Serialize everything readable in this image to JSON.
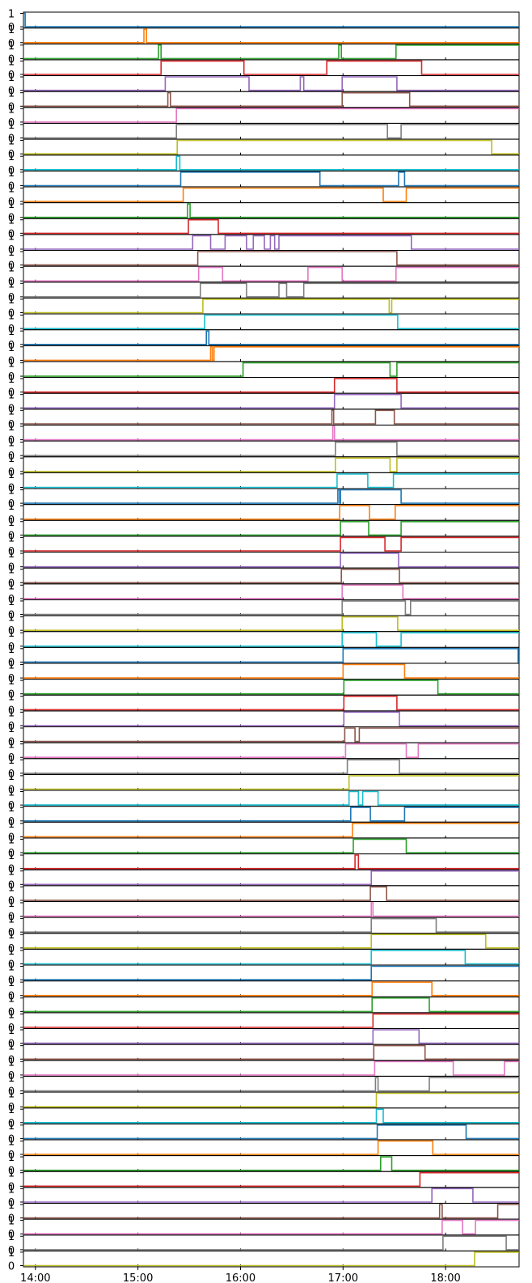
{
  "chart_data": {
    "type": "line",
    "subtype": "stacked-step-strips",
    "xlabel": "",
    "ylabel": "",
    "x_tick_labels": [
      "14:00",
      "15:00",
      "16:00",
      "17:00",
      "18:00"
    ],
    "x_ticks_minutes": [
      840,
      900,
      960,
      1020,
      1080
    ],
    "xlim_minutes": [
      833,
      1123
    ],
    "ylim": [
      0,
      1
    ],
    "y_tick_labels": [
      "0",
      "1"
    ],
    "grid": false,
    "colors": [
      "#1f77b4",
      "#ff7f0e",
      "#2ca02c",
      "#d62728",
      "#9467bd",
      "#8c564b",
      "#e377c2",
      "#7f7f7f",
      "#bcbd22",
      "#17becf"
    ],
    "series": [
      {
        "initial": 1,
        "edges": [
          834
        ]
      },
      {
        "initial": 0,
        "edges": [
          903.5,
          905
        ]
      },
      {
        "initial": 0,
        "edges": [
          912,
          913.5,
          1017.5,
          1019,
          1051
        ]
      },
      {
        "initial": 0,
        "edges": [
          913.5,
          962,
          1010.5,
          1066
        ]
      },
      {
        "initial": 0,
        "edges": [
          916,
          965,
          995,
          997,
          1019.5,
          1051.5
        ]
      },
      {
        "initial": 0,
        "edges": [
          917.5,
          919,
          1019.5,
          1059
        ]
      },
      {
        "initial": 0,
        "edges": [
          922.5
        ]
      },
      {
        "initial": 0,
        "edges": [
          922.5,
          1046,
          1054
        ]
      },
      {
        "initial": 0,
        "edges": [
          923,
          1107
        ]
      },
      {
        "initial": 0,
        "edges": [
          922.5,
          924.5
        ]
      },
      {
        "initial": 0,
        "edges": [
          925,
          1006.5,
          1052.5,
          1056
        ]
      },
      {
        "initial": 0,
        "edges": [
          926.5,
          1043.5,
          1057
        ]
      },
      {
        "initial": 0,
        "edges": [
          929,
          930.5
        ]
      },
      {
        "initial": 0,
        "edges": [
          929.5,
          947
        ]
      },
      {
        "initial": 0,
        "edges": [
          932,
          942.5,
          951,
          963.5,
          967.5,
          974,
          977.5,
          980,
          982.5,
          1060
        ]
      },
      {
        "initial": 0,
        "edges": [
          935,
          1051.5
        ]
      },
      {
        "initial": 0,
        "edges": [
          935.5,
          949.5,
          999.5,
          1019.5,
          1051
        ]
      },
      {
        "initial": 0,
        "edges": [
          936.5,
          963.5,
          982.5,
          987,
          997
        ]
      },
      {
        "initial": 0,
        "edges": [
          938,
          1047,
          1048.5
        ]
      },
      {
        "initial": 0,
        "edges": [
          939,
          1052
        ]
      },
      {
        "initial": 0,
        "edges": [
          940,
          941.5
        ]
      },
      {
        "initial": 0,
        "edges": [
          942.5,
          943.5,
          944.5
        ]
      },
      {
        "initial": 0,
        "edges": [
          961.5,
          1047.5,
          1051.5
        ]
      },
      {
        "initial": 0,
        "edges": [
          1015,
          1051.5
        ]
      },
      {
        "initial": 0,
        "edges": [
          1015,
          1054
        ]
      },
      {
        "initial": 0,
        "edges": [
          1013.5,
          1014.5,
          1039,
          1050
        ]
      },
      {
        "initial": 0,
        "edges": [
          1014,
          1015
        ]
      },
      {
        "initial": 0,
        "edges": [
          1015.5,
          1051.5
        ]
      },
      {
        "initial": 0,
        "edges": [
          1015.5,
          1047.5,
          1051.5
        ]
      },
      {
        "initial": 0,
        "edges": [
          1016.5,
          1034.5,
          1049.5
        ]
      },
      {
        "initial": 0,
        "edges": [
          1017,
          1018,
          1018.5,
          1054
        ]
      },
      {
        "initial": 0,
        "edges": [
          1018,
          1035.5,
          1050.5
        ]
      },
      {
        "initial": 0,
        "edges": [
          1018.5,
          1035,
          1054
        ]
      },
      {
        "initial": 0,
        "edges": [
          1018.5,
          1044.5,
          1054
        ]
      },
      {
        "initial": 0,
        "edges": [
          1018.5,
          1052.5
        ]
      },
      {
        "initial": 0,
        "edges": [
          1019,
          1053
        ]
      },
      {
        "initial": 0,
        "edges": [
          1019.5,
          1055
        ]
      },
      {
        "initial": 0,
        "edges": [
          1019.5,
          1056.5,
          1059.5
        ]
      },
      {
        "initial": 0,
        "edges": [
          1019.5,
          1052
        ]
      },
      {
        "initial": 0,
        "edges": [
          1019.5,
          1039.5,
          1054
        ]
      },
      {
        "initial": 0,
        "edges": [
          1020,
          1122.5
        ]
      },
      {
        "initial": 0,
        "edges": [
          1020,
          1056
        ]
      },
      {
        "initial": 0,
        "edges": [
          1020.5,
          1075.5
        ]
      },
      {
        "initial": 0,
        "edges": [
          1020.5,
          1051.5
        ]
      },
      {
        "initial": 0,
        "edges": [
          1020.5,
          1053
        ]
      },
      {
        "initial": 0,
        "edges": [
          1021,
          1027,
          1029.5
        ]
      },
      {
        "initial": 0,
        "edges": [
          1021.5,
          1057,
          1064
        ]
      },
      {
        "initial": 0,
        "edges": [
          1022.5,
          1053
        ]
      },
      {
        "initial": 0,
        "edges": [
          1023.5
        ]
      },
      {
        "initial": 0,
        "edges": [
          1023.5,
          1029,
          1031.5,
          1040.5
        ]
      },
      {
        "initial": 0,
        "edges": [
          1024.5,
          1036,
          1056
        ]
      },
      {
        "initial": 0,
        "edges": [
          1025.5
        ]
      },
      {
        "initial": 0,
        "edges": [
          1026,
          1057
        ]
      },
      {
        "initial": 0,
        "edges": [
          1027,
          1029
        ]
      },
      {
        "initial": 0,
        "edges": [
          1036.5
        ]
      },
      {
        "initial": 0,
        "edges": [
          1036,
          1045.5
        ]
      },
      {
        "initial": 0,
        "edges": [
          1036.5,
          1037.5
        ]
      },
      {
        "initial": 0,
        "edges": [
          1036.5,
          1074.5
        ]
      },
      {
        "initial": 0,
        "edges": [
          1036.5,
          1103.5
        ]
      },
      {
        "initial": 0,
        "edges": [
          1036.5,
          1091.5
        ]
      },
      {
        "initial": 0,
        "edges": [
          1036.5
        ]
      },
      {
        "initial": 0,
        "edges": [
          1037,
          1072
        ]
      },
      {
        "initial": 0,
        "edges": [
          1037,
          1070.5
        ]
      },
      {
        "initial": 0,
        "edges": [
          1037.5
        ]
      },
      {
        "initial": 0,
        "edges": [
          1037.5,
          1064.5
        ]
      },
      {
        "initial": 0,
        "edges": [
          1038,
          1068
        ]
      },
      {
        "initial": 0,
        "edges": [
          1038.5,
          1084.5,
          1114.5
        ]
      },
      {
        "initial": 0,
        "edges": [
          1039,
          1040.5,
          1070.5
        ]
      },
      {
        "initial": 0,
        "edges": [
          1039.5
        ]
      },
      {
        "initial": 0,
        "edges": [
          1039.5,
          1043.5
        ]
      },
      {
        "initial": 0,
        "edges": [
          1040,
          1092
        ]
      },
      {
        "initial": 0,
        "edges": [
          1040.5,
          1072.5
        ]
      },
      {
        "initial": 0,
        "edges": [
          1042,
          1048.5
        ]
      },
      {
        "initial": 0,
        "edges": [
          1065
        ]
      },
      {
        "initial": 0,
        "edges": [
          1072,
          1096
        ]
      },
      {
        "initial": 0,
        "edges": [
          1076.5,
          1078,
          1110.5
        ]
      },
      {
        "initial": 0,
        "edges": [
          1078,
          1090,
          1097.5
        ]
      },
      {
        "initial": 0,
        "edges": [
          1078.5,
          1115.5
        ]
      },
      {
        "initial": 0,
        "edges": [
          1097
        ]
      }
    ]
  }
}
